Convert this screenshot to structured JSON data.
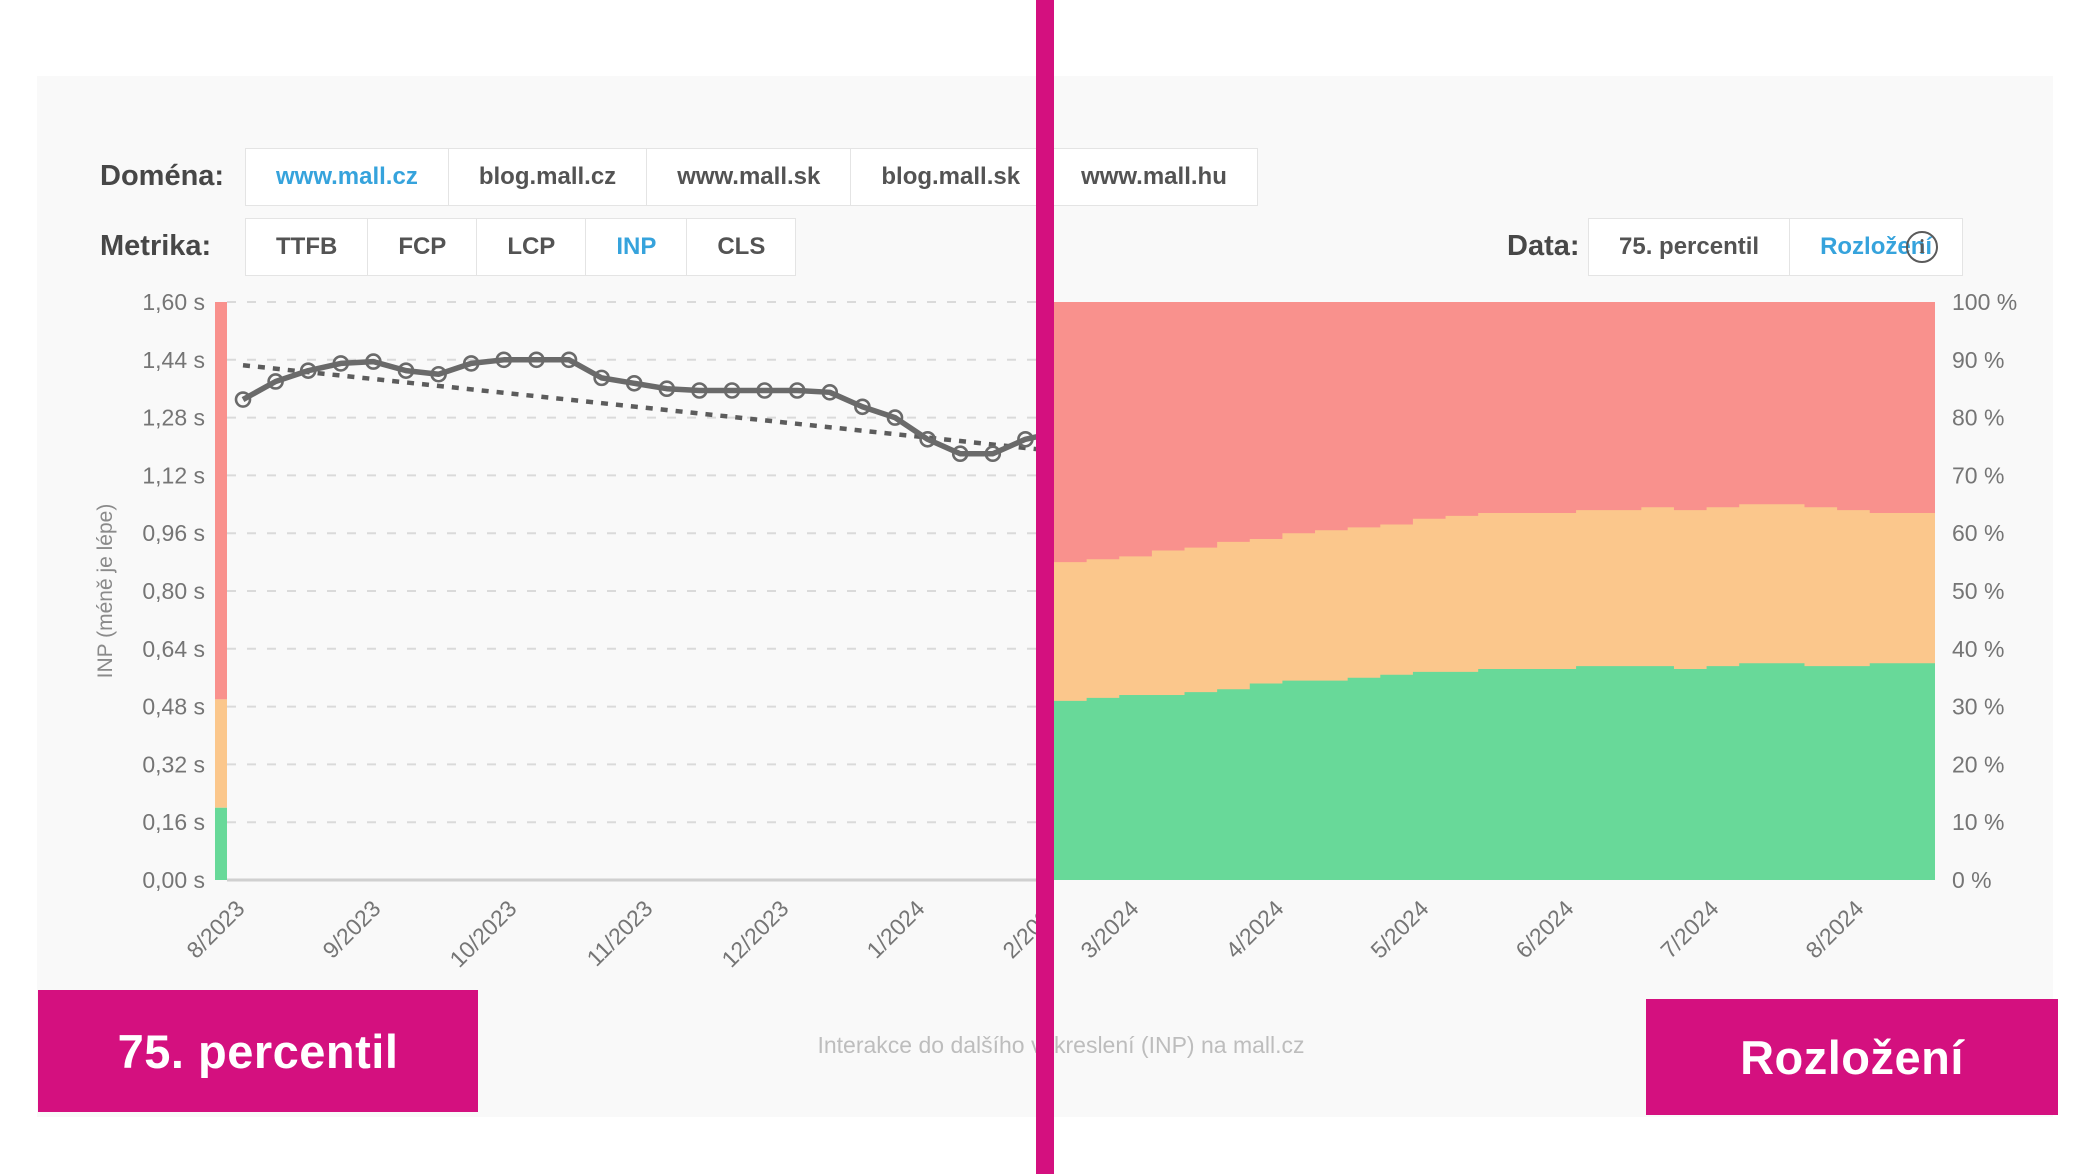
{
  "colors": {
    "magenta": "#d4107f",
    "accent_blue": "#36a3dc",
    "band_red": "#f9918d",
    "band_orange": "#fbc78c",
    "band_green": "#68d999",
    "line_gray": "#6a6a6a",
    "panel_bg": "#f9f9f9"
  },
  "controls": {
    "domain": {
      "label": "Doména:",
      "options": [
        "www.mall.cz",
        "blog.mall.cz",
        "www.mall.sk",
        "blog.mall.sk",
        "www.mall.hu"
      ],
      "active": "www.mall.cz"
    },
    "metric": {
      "label": "Metrika:",
      "options": [
        "TTFB",
        "FCP",
        "LCP",
        "INP",
        "CLS"
      ],
      "active": "INP"
    },
    "data_view": {
      "label": "Data:",
      "options": [
        "75. percentil",
        "Rozložení"
      ],
      "active": "Rozložení",
      "info_icon_glyph": "i"
    }
  },
  "overlay": {
    "left_label": "75. percentil",
    "right_label": "Rozložení"
  },
  "caption": "Interakce do dalšího vykreslení (INP) na mall.cz",
  "chart_data": [
    {
      "type": "line",
      "name": "inp-75th-percentile-weekly",
      "ylabel": "INP (méně je lépe)",
      "ylim_s": [
        0,
        1.6
      ],
      "y_tick_labels": [
        "1,60 s",
        "1,44 s",
        "1,28 s",
        "1,12 s",
        "0,96 s",
        "0,80 s",
        "0,64 s",
        "0,48 s",
        "0,32 s",
        "0,16 s",
        "0,00 s"
      ],
      "x_tick_labels": [
        "8/2023",
        "9/2023",
        "10/2023",
        "11/2023",
        "12/2023",
        "1/2024",
        "2/2024"
      ],
      "values_s": [
        1.33,
        1.38,
        1.41,
        1.43,
        1.435,
        1.41,
        1.4,
        1.43,
        1.44,
        1.44,
        1.44,
        1.39,
        1.375,
        1.36,
        1.355,
        1.355,
        1.355,
        1.355,
        1.35,
        1.31,
        1.28,
        1.22,
        1.18,
        1.18,
        1.22,
        1.24,
        1.26
      ],
      "trend_line_s": {
        "start": 1.425,
        "end": 1.19
      },
      "threshold_bands_s": {
        "good": [
          0,
          0.2
        ],
        "needs_improvement": [
          0.2,
          0.5
        ],
        "poor": [
          0.5,
          1.6
        ]
      },
      "grid": "dashed-horizontal",
      "legend": "none"
    },
    {
      "type": "area",
      "name": "inp-distribution-stacked",
      "stacked": true,
      "unit": "%",
      "ylim_pct": [
        0,
        100
      ],
      "y_tick_labels": [
        "100 %",
        "90 %",
        "80 %",
        "70 %",
        "60 %",
        "50 %",
        "40 %",
        "30 %",
        "20 %",
        "10 %",
        "0 %"
      ],
      "x_tick_labels": [
        "3/2024",
        "4/2024",
        "5/2024",
        "6/2024",
        "7/2024",
        "8/2024"
      ],
      "series": [
        {
          "name": "good",
          "boundary": "green_top_pct",
          "values": [
            31,
            31.5,
            32,
            32,
            32.5,
            33,
            34,
            34.5,
            34.5,
            35,
            35.5,
            36,
            36,
            36.5,
            36.5,
            36.5,
            37,
            37,
            37,
            36.5,
            37,
            37.5,
            37.5,
            37,
            37,
            37.5,
            37.5
          ]
        },
        {
          "name": "needs_improvement",
          "boundary": "orange_top_pct",
          "values": [
            55,
            55.5,
            56,
            57,
            57.5,
            58.5,
            59,
            60,
            60.5,
            61,
            61.5,
            62.5,
            63,
            63.5,
            63.5,
            63.5,
            64,
            64,
            64.5,
            64,
            64.5,
            65,
            65,
            64.5,
            64,
            63.5,
            63.5
          ]
        },
        {
          "name": "poor",
          "boundary": "top",
          "values_note": "remainder up to 100"
        }
      ],
      "grid": "off",
      "legend": "none"
    }
  ]
}
